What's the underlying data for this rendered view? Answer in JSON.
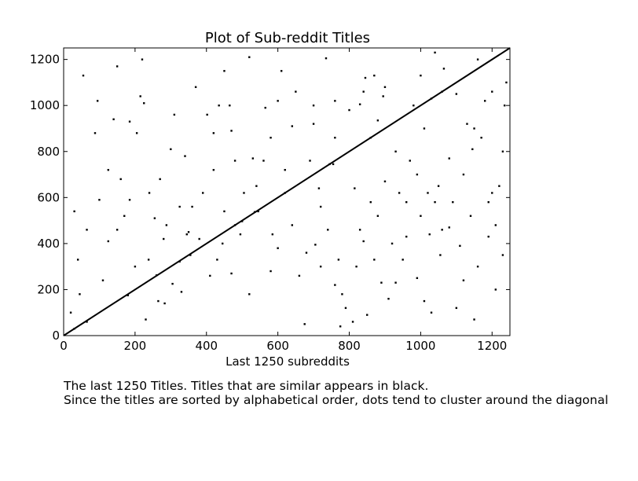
{
  "chart_data": {
    "type": "scatter",
    "title": "Plot of Sub-reddit Titles",
    "xlabel": "Last 1250 subreddits",
    "ylabel": "",
    "xlim": [
      0,
      1250
    ],
    "ylim": [
      0,
      1250
    ],
    "xticks": [
      0,
      200,
      400,
      600,
      800,
      1000,
      1200
    ],
    "yticks": [
      0,
      200,
      400,
      600,
      800,
      1000,
      1200
    ],
    "grid": false,
    "legend": "none",
    "diagonal": {
      "from": [
        0,
        0
      ],
      "to": [
        1250,
        1250
      ],
      "color": "#000000"
    },
    "points": [
      [
        30,
        30
      ],
      [
        65,
        60
      ],
      [
        180,
        175
      ],
      [
        260,
        262
      ],
      [
        325,
        322
      ],
      [
        500,
        497
      ],
      [
        535,
        537
      ],
      [
        620,
        620
      ],
      [
        745,
        745
      ],
      [
        755,
        745
      ],
      [
        860,
        860
      ],
      [
        880,
        935
      ],
      [
        1030,
        1030
      ],
      [
        1060,
        1060
      ],
      [
        30,
        540
      ],
      [
        65,
        460
      ],
      [
        88,
        880
      ],
      [
        125,
        410
      ],
      [
        125,
        720
      ],
      [
        140,
        940
      ],
      [
        150,
        460
      ],
      [
        185,
        930
      ],
      [
        185,
        590
      ],
      [
        205,
        880
      ],
      [
        215,
        1040
      ],
      [
        225,
        1010
      ],
      [
        238,
        330
      ],
      [
        240,
        620
      ],
      [
        255,
        510
      ],
      [
        265,
        150
      ],
      [
        283,
        140
      ],
      [
        288,
        480
      ],
      [
        300,
        810
      ],
      [
        305,
        225
      ],
      [
        325,
        560
      ],
      [
        340,
        780
      ],
      [
        345,
        440
      ],
      [
        350,
        450
      ],
      [
        355,
        350
      ],
      [
        380,
        420
      ],
      [
        402,
        960
      ],
      [
        410,
        260
      ],
      [
        420,
        720
      ],
      [
        435,
        1000
      ],
      [
        445,
        400
      ],
      [
        450,
        540
      ],
      [
        465,
        1000
      ],
      [
        470,
        890
      ],
      [
        480,
        480
      ],
      [
        495,
        440
      ],
      [
        505,
        620
      ],
      [
        530,
        770
      ],
      [
        545,
        540
      ],
      [
        565,
        990
      ],
      [
        580,
        280
      ],
      [
        585,
        440
      ],
      [
        610,
        1150
      ],
      [
        620,
        720
      ],
      [
        660,
        260
      ],
      [
        675,
        50
      ],
      [
        690,
        760
      ],
      [
        705,
        395
      ],
      [
        715,
        640
      ],
      [
        735,
        1205
      ],
      [
        760,
        220
      ],
      [
        775,
        40
      ],
      [
        810,
        60
      ],
      [
        815,
        640
      ],
      [
        830,
        1005
      ],
      [
        840,
        1060
      ],
      [
        845,
        1120
      ],
      [
        870,
        1130
      ],
      [
        895,
        1040
      ],
      [
        900,
        670
      ],
      [
        920,
        400
      ],
      [
        930,
        230
      ],
      [
        960,
        430
      ],
      [
        990,
        250
      ],
      [
        1000,
        1130
      ],
      [
        1010,
        900
      ],
      [
        1025,
        440
      ],
      [
        1030,
        100
      ],
      [
        1040,
        580
      ],
      [
        1055,
        350
      ],
      [
        1065,
        1160
      ],
      [
        1080,
        470
      ],
      [
        1110,
        390
      ],
      [
        1120,
        240
      ],
      [
        1130,
        920
      ],
      [
        1145,
        810
      ],
      [
        1150,
        70
      ],
      [
        1170,
        860
      ],
      [
        1190,
        430
      ],
      [
        1200,
        620
      ],
      [
        1210,
        200
      ],
      [
        1220,
        650
      ],
      [
        1235,
        1000
      ],
      [
        1240,
        1100
      ],
      [
        55,
        1130
      ],
      [
        95,
        1020
      ],
      [
        150,
        1170
      ],
      [
        220,
        1200
      ],
      [
        310,
        960
      ],
      [
        370,
        1080
      ],
      [
        450,
        1150
      ],
      [
        520,
        1210
      ],
      [
        600,
        1020
      ],
      [
        650,
        1060
      ],
      [
        700,
        920
      ],
      [
        760,
        1020
      ],
      [
        780,
        180
      ],
      [
        820,
        300
      ],
      [
        850,
        90
      ],
      [
        880,
        520
      ],
      [
        930,
        800
      ],
      [
        960,
        580
      ],
      [
        990,
        700
      ],
      [
        1010,
        150
      ],
      [
        1050,
        650
      ],
      [
        1080,
        770
      ],
      [
        1100,
        120
      ],
      [
        1140,
        520
      ],
      [
        1160,
        300
      ],
      [
        1190,
        580
      ],
      [
        1230,
        800
      ],
      [
        40,
        330
      ],
      [
        45,
        180
      ],
      [
        110,
        240
      ],
      [
        160,
        680
      ],
      [
        170,
        520
      ],
      [
        230,
        70
      ],
      [
        270,
        680
      ],
      [
        330,
        190
      ],
      [
        390,
        620
      ],
      [
        430,
        330
      ],
      [
        470,
        270
      ],
      [
        520,
        180
      ],
      [
        560,
        760
      ],
      [
        600,
        380
      ],
      [
        640,
        480
      ],
      [
        680,
        360
      ],
      [
        720,
        560
      ],
      [
        740,
        460
      ],
      [
        770,
        330
      ],
      [
        790,
        120
      ],
      [
        830,
        460
      ],
      [
        860,
        580
      ],
      [
        890,
        230
      ],
      [
        910,
        160
      ],
      [
        940,
        620
      ],
      [
        970,
        760
      ],
      [
        1000,
        520
      ],
      [
        1020,
        620
      ],
      [
        1060,
        460
      ],
      [
        1090,
        580
      ],
      [
        1120,
        700
      ],
      [
        1150,
        900
      ],
      [
        1180,
        1020
      ],
      [
        1210,
        480
      ],
      [
        20,
        100
      ],
      [
        100,
        590
      ],
      [
        200,
        300
      ],
      [
        280,
        420
      ],
      [
        360,
        560
      ],
      [
        420,
        880
      ],
      [
        480,
        760
      ],
      [
        540,
        650
      ],
      [
        580,
        860
      ],
      [
        640,
        910
      ],
      [
        700,
        1000
      ],
      [
        720,
        300
      ],
      [
        760,
        860
      ],
      [
        800,
        980
      ],
      [
        840,
        410
      ],
      [
        870,
        330
      ],
      [
        900,
        1080
      ],
      [
        950,
        330
      ],
      [
        980,
        1000
      ],
      [
        1040,
        1230
      ],
      [
        1100,
        1050
      ],
      [
        1160,
        1200
      ],
      [
        1200,
        1060
      ],
      [
        1230,
        350
      ]
    ]
  },
  "caption": "The last 1250 Titles. Titles that are similar appears in black.\nSince the titles are sorted by alphabetical order, dots tend to cluster around the diagonal"
}
